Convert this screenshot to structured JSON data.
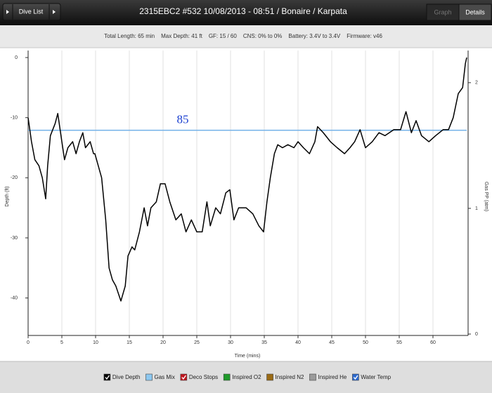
{
  "toolbar": {
    "back_button": "Dive List",
    "title": "2315EBC2 #532 10/08/2013 - 08:51  / Bonaire / Karpata",
    "tabs": [
      {
        "label": "Graph",
        "active": false
      },
      {
        "label": "Details",
        "active": true
      }
    ]
  },
  "summary": [
    "Total Length: 65 min",
    "Max Depth: 41 ft",
    "GF: 15 / 60",
    "CNS: 0% to 0%",
    "Battery: 3.4V to 3.4V",
    "Firmware: v46"
  ],
  "chart_data": {
    "type": "line",
    "xlabel": "Time (mins)",
    "ylabel": "Depth (ft)",
    "y2label": "Gas PP (atm)",
    "xlim": [
      0,
      65
    ],
    "xticks": [
      0,
      5,
      10,
      15,
      20,
      25,
      30,
      35,
      40,
      45,
      50,
      55,
      60
    ],
    "ylim": [
      -46,
      0
    ],
    "yticks": [
      0,
      -10,
      -20,
      -30,
      -40
    ],
    "y2lim": [
      0,
      2.2
    ],
    "y2ticks": [
      0,
      1,
      2
    ],
    "grid": true,
    "x": [
      0,
      0.5,
      1,
      1.6,
      2.1,
      2.6,
      2.9,
      3.3,
      4,
      4.4,
      5,
      5.4,
      5.9,
      6.6,
      7.1,
      7.6,
      8.1,
      8.5,
      9.2,
      9.7,
      9.9,
      10.9,
      11.5,
      12,
      12.5,
      13,
      13.75,
      14.4,
      14.8,
      15.4,
      15.8,
      16.5,
      17.2,
      17.7,
      18.2,
      19,
      19.6,
      20.3,
      21,
      21.9,
      22.7,
      23.4,
      24.2,
      25,
      25.8,
      26.5,
      27,
      27.8,
      28.5,
      29.3,
      29.9,
      30.5,
      31.2,
      32.3,
      33.3,
      34.2,
      34.9,
      35.4,
      35.9,
      36.5,
      37,
      37.7,
      38.5,
      39.4,
      40,
      40.8,
      41.7,
      42.5,
      42.9,
      43.75,
      44.8,
      45.8,
      46.9,
      47.7,
      48.4,
      49.2,
      50,
      51,
      52,
      52.9,
      54.2,
      55.2,
      56,
      56.8,
      57.5,
      58.3,
      59.4,
      60.4,
      61.5,
      62.3,
      63,
      63.75,
      64.4,
      64.8,
      65
    ],
    "series": [
      {
        "name": "Dive Depth",
        "color": "#000000",
        "checked": true,
        "values": [
          -10,
          -14,
          -17,
          -18,
          -20,
          -23.5,
          -18,
          -13,
          -11,
          -9.3,
          -14,
          -17,
          -15,
          -14,
          -16,
          -14,
          -12.5,
          -15,
          -14,
          -16,
          -16,
          -20,
          -27,
          -35,
          -37,
          -38,
          -40.5,
          -38,
          -33,
          -31.5,
          -32,
          -29,
          -25,
          -28,
          -25,
          -24,
          -21,
          -21,
          -24,
          -27,
          -26,
          -29,
          -27,
          -29,
          -29,
          -24,
          -28,
          -25,
          -26,
          -22.5,
          -22,
          -27,
          -25,
          -25,
          -26,
          -28,
          -29,
          -24,
          -20,
          -16,
          -14.5,
          -15,
          -14.5,
          -15,
          -14,
          -15,
          -16,
          -14,
          -11.5,
          -12.5,
          -14,
          -15,
          -16,
          -15,
          -14,
          -12,
          -15,
          -14,
          -12.5,
          -13,
          -12,
          -12,
          -9,
          -12.5,
          -10.5,
          -13,
          -14,
          -13,
          -12,
          -12,
          -10,
          -6,
          -5,
          -1,
          0
        ]
      }
    ],
    "other_layers": [
      {
        "name": "Gas Mix",
        "color": "#8cc8f0",
        "checked": false
      },
      {
        "name": "Deco Stops",
        "color": "#c0141c",
        "checked": true
      },
      {
        "name": "Inspired O2",
        "color": "#1e9a2a",
        "checked": false
      },
      {
        "name": "Inspired N2",
        "color": "#9a6a14",
        "checked": false
      },
      {
        "name": "Inspired He",
        "color": "#9a9a9a",
        "checked": false
      },
      {
        "name": "Water Temp",
        "color": "#2c6ad0",
        "checked": true
      }
    ],
    "annotation": {
      "text": "85",
      "y": -12.1,
      "color": "#1a3fd0",
      "line_color": "#72b0e8"
    }
  }
}
